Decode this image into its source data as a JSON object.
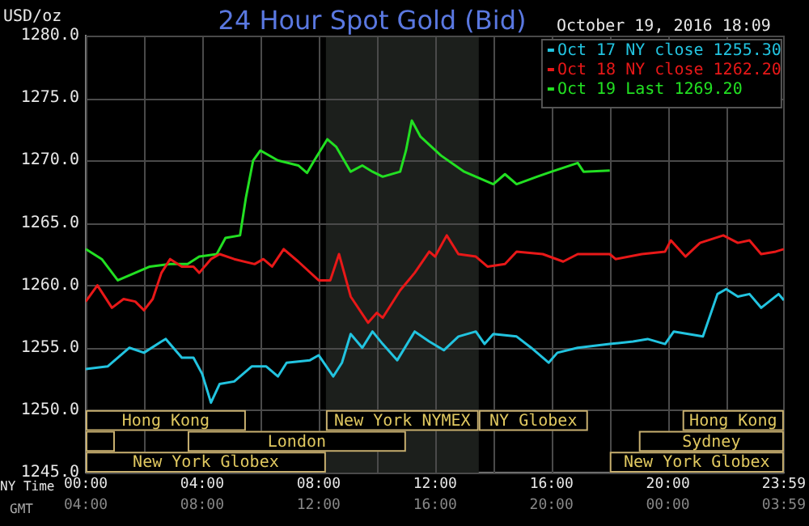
{
  "chart_data": {
    "type": "line",
    "title": "24 Hour Spot Gold (Bid)",
    "subtitle": "October 19, 2016 18:09",
    "ylabel": "USD/oz",
    "xlabel": "NY Time",
    "x2label": "GMT",
    "xlim": [
      0,
      23.98
    ],
    "xticks": [
      {
        "value": 0,
        "label": "00:00"
      },
      {
        "value": 2,
        "label": null
      },
      {
        "value": 4,
        "label": "04:00"
      },
      {
        "value": 6,
        "label": null
      },
      {
        "value": 8,
        "label": "08:00"
      },
      {
        "value": 10,
        "label": null
      },
      {
        "value": 12,
        "label": "12:00"
      },
      {
        "value": 14,
        "label": null
      },
      {
        "value": 16,
        "label": "16:00"
      },
      {
        "value": 18,
        "label": null
      },
      {
        "value": 20,
        "label": "20:00"
      },
      {
        "value": 22,
        "label": null
      },
      {
        "value": 23.98,
        "label": "23:59"
      }
    ],
    "x2lim": [
      "2016-10-19T04:00",
      "2016-10-20T03:59"
    ],
    "x2ticks": [
      {
        "value": "2016-10-19T04:00",
        "label": "04:00"
      },
      {
        "value": "2016-10-19T08:00",
        "label": "08:00"
      },
      {
        "value": "2016-10-19T12:00",
        "label": "12:00"
      },
      {
        "value": "2016-10-19T16:00",
        "label": "16:00"
      },
      {
        "value": "2016-10-19T20:00",
        "label": "20:00"
      },
      {
        "value": "2016-10-20T00:00",
        "label": "00:00"
      },
      {
        "value": "2016-10-20T03:59",
        "label": "03:59"
      }
    ],
    "ylim": [
      1245,
      1280
    ],
    "yticks": [
      {
        "value": 1245,
        "label": "1245.0"
      },
      {
        "value": 1250,
        "label": "1250.0"
      },
      {
        "value": 1255,
        "label": "1255.0"
      },
      {
        "value": 1260,
        "label": "1260.0"
      },
      {
        "value": 1265,
        "label": "1265.0"
      },
      {
        "value": 1270,
        "label": "1270.0"
      },
      {
        "value": 1275,
        "label": "1275.0"
      },
      {
        "value": 1280,
        "label": "1280.0"
      }
    ],
    "grid": true,
    "legend": "top right",
    "marker": "none",
    "line_style": "solid",
    "series": [
      {
        "name": "Oct 17 NY close 1255.30",
        "color": "#22c4e0",
        "x": [
          0,
          0.75,
          1.5,
          2.0,
          2.6,
          2.75,
          3.3,
          3.7,
          4.0,
          4.3,
          4.6,
          5.1,
          5.7,
          6.2,
          6.6,
          6.9,
          7.7,
          8.0,
          8.5,
          8.8,
          9.1,
          9.5,
          9.85,
          10.2,
          10.7,
          11.3,
          11.8,
          12.3,
          12.8,
          13.4,
          13.7,
          14.0,
          14.8,
          15.3,
          15.9,
          16.2,
          16.9,
          18.0,
          18.8,
          19.3,
          19.9,
          20.2,
          21.2,
          21.7,
          22.0,
          22.4,
          22.8,
          23.2,
          23.8,
          23.98
        ],
        "values": [
          1253.3,
          1253.5,
          1255.0,
          1254.6,
          1255.5,
          1255.7,
          1254.2,
          1254.2,
          1252.9,
          1250.6,
          1252.1,
          1252.3,
          1253.5,
          1253.5,
          1252.7,
          1253.8,
          1254.0,
          1254.4,
          1252.7,
          1253.8,
          1256.1,
          1255.0,
          1256.3,
          1255.3,
          1254.0,
          1256.3,
          1255.5,
          1254.8,
          1255.9,
          1256.3,
          1255.3,
          1256.1,
          1255.9,
          1255.0,
          1253.8,
          1254.6,
          1255.0,
          1255.3,
          1255.5,
          1255.7,
          1255.3,
          1256.3,
          1255.9,
          1259.3,
          1259.7,
          1259.1,
          1259.3,
          1258.2,
          1259.3,
          1258.8
        ]
      },
      {
        "name": "Oct 18 NY close 1262.20",
        "color": "#e81818",
        "x": [
          0,
          0.4,
          0.9,
          1.3,
          1.7,
          2.0,
          2.3,
          2.6,
          2.9,
          3.3,
          3.7,
          3.9,
          4.3,
          4.6,
          5.1,
          5.8,
          6.1,
          6.4,
          6.8,
          7.3,
          8.0,
          8.4,
          8.7,
          9.1,
          9.7,
          10.0,
          10.2,
          10.8,
          11.3,
          11.8,
          12.0,
          12.4,
          12.8,
          13.4,
          13.8,
          14.4,
          14.8,
          15.7,
          16.4,
          16.9,
          18.0,
          18.2,
          19.1,
          19.9,
          20.1,
          20.6,
          21.1,
          21.9,
          22.4,
          22.8,
          23.2,
          23.7,
          23.98
        ],
        "values": [
          1258.7,
          1260.0,
          1258.2,
          1258.9,
          1258.7,
          1258.0,
          1258.9,
          1261.0,
          1262.1,
          1261.5,
          1261.5,
          1261.0,
          1262.1,
          1262.5,
          1262.1,
          1261.7,
          1262.1,
          1261.5,
          1262.9,
          1261.9,
          1260.4,
          1260.4,
          1262.5,
          1259.1,
          1257.0,
          1257.8,
          1257.4,
          1259.6,
          1261.0,
          1262.7,
          1262.3,
          1264.0,
          1262.5,
          1262.3,
          1261.5,
          1261.7,
          1262.7,
          1262.5,
          1261.9,
          1262.5,
          1262.5,
          1262.1,
          1262.5,
          1262.7,
          1263.6,
          1262.3,
          1263.4,
          1264.0,
          1263.4,
          1263.6,
          1262.5,
          1262.7,
          1262.9
        ]
      },
      {
        "name": "Oct 19 Last 1269.20",
        "color": "#22e022",
        "x": [
          0,
          0.55,
          1.1,
          1.7,
          2.2,
          2.9,
          3.5,
          3.9,
          4.5,
          4.8,
          5.3,
          5.5,
          5.75,
          6.0,
          6.6,
          7.3,
          7.6,
          7.85,
          8.3,
          8.6,
          9.1,
          9.5,
          9.85,
          10.2,
          10.8,
          11.0,
          11.2,
          11.5,
          12.2,
          13.0,
          14.0,
          14.4,
          14.8,
          15.5,
          16.0,
          16.9,
          17.1,
          18.0
        ],
        "values": [
          1262.9,
          1262.1,
          1260.4,
          1261.0,
          1261.5,
          1261.7,
          1261.7,
          1262.3,
          1262.5,
          1263.8,
          1264.0,
          1267.0,
          1270.0,
          1270.8,
          1270.0,
          1269.6,
          1269.0,
          1270.0,
          1271.7,
          1271.1,
          1269.1,
          1269.6,
          1269.1,
          1268.7,
          1269.1,
          1270.8,
          1273.2,
          1271.9,
          1270.4,
          1269.1,
          1268.1,
          1268.9,
          1268.1,
          1268.7,
          1269.1,
          1269.8,
          1269.1,
          1269.2
        ]
      }
    ],
    "bands": [
      {
        "axis": "x",
        "from": 8.25,
        "to": 13.5,
        "color": "#1c1f1c"
      },
      {
        "axis": "x",
        "from": 0,
        "to": 5.5,
        "label": "Hong Kong"
      },
      {
        "axis": "x",
        "from": 20.5,
        "to": 23.98,
        "label": "Hong Kong"
      },
      {
        "axis": "x",
        "from": 0,
        "to": 1,
        "label": null
      },
      {
        "axis": "x",
        "from": 3.5,
        "to": 11,
        "label": "London"
      },
      {
        "axis": "x",
        "from": 19,
        "to": 23.98,
        "label": "Sydney"
      },
      {
        "axis": "x",
        "from": 0,
        "to": 8.25,
        "label": "New York Globex"
      },
      {
        "axis": "x",
        "from": 8.25,
        "to": 13.5,
        "label": "New York NYMEX"
      },
      {
        "axis": "x",
        "from": 13.5,
        "to": 17.25,
        "label": "NY Globex"
      },
      {
        "axis": "x",
        "from": 18,
        "to": 23.98,
        "label": "New York Globex"
      }
    ]
  }
}
